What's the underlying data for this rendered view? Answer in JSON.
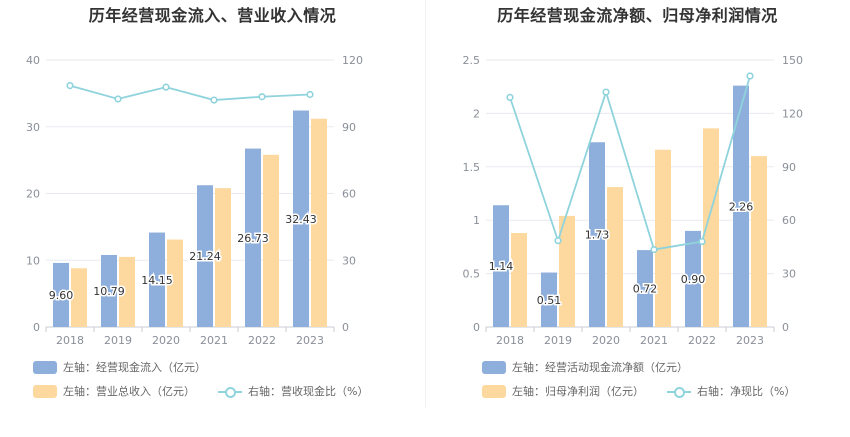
{
  "colors": {
    "blue": "#8eaedb",
    "orange": "#fdd9a0",
    "cyan": "#8fd3dc"
  },
  "chart_data": [
    {
      "type": "bar",
      "title": "历年经营现金流入、营业收入情况",
      "categories": [
        "2018",
        "2019",
        "2020",
        "2021",
        "2022",
        "2023"
      ],
      "y_left": {
        "ticks": [
          "0",
          "10",
          "20",
          "30",
          "40"
        ],
        "lim": [
          0,
          40
        ]
      },
      "y_right": {
        "ticks": [
          "0",
          "30",
          "60",
          "90",
          "120"
        ],
        "lim": [
          0,
          120
        ]
      },
      "series": [
        {
          "name": "左轴：经营现金流入（亿元）",
          "type": "bar",
          "axis": "left",
          "color": "#8eaedb",
          "values": [
            9.6,
            10.79,
            14.15,
            21.24,
            26.73,
            32.43
          ],
          "labels": [
            "9.60",
            "10.79",
            "14.15",
            "21.24",
            "26.73",
            "32.43"
          ]
        },
        {
          "name": "左轴：营业总收入（亿元）",
          "type": "bar",
          "axis": "left",
          "color": "#fdd9a0",
          "values": [
            8.8,
            10.5,
            13.1,
            20.8,
            25.8,
            31.2
          ]
        },
        {
          "name": "右轴：营收现金比（%）",
          "type": "line",
          "axis": "right",
          "color": "#8fd3dc",
          "values": [
            108.5,
            102.5,
            107.8,
            102.0,
            103.5,
            104.5
          ]
        }
      ]
    },
    {
      "type": "bar",
      "title": "历年经营现金流净额、归母净利润情况",
      "categories": [
        "2018",
        "2019",
        "2020",
        "2021",
        "2022",
        "2023"
      ],
      "y_left": {
        "ticks": [
          "0",
          "0.5",
          "1",
          "1.5",
          "2",
          "2.5"
        ],
        "lim": [
          0,
          2.5
        ]
      },
      "y_right": {
        "ticks": [
          "0",
          "30",
          "60",
          "90",
          "120",
          "150"
        ],
        "lim": [
          0,
          150
        ]
      },
      "series": [
        {
          "name": "左轴：经营活动现金流净额（亿元）",
          "type": "bar",
          "axis": "left",
          "color": "#8eaedb",
          "values": [
            1.14,
            0.51,
            1.73,
            0.72,
            0.9,
            2.26
          ],
          "labels": [
            "1.14",
            "0.51",
            "1.73",
            "0.72",
            "0.90",
            "2.26"
          ]
        },
        {
          "name": "左轴：归母净利润（亿元）",
          "type": "bar",
          "axis": "left",
          "color": "#fdd9a0",
          "values": [
            0.88,
            1.04,
            1.31,
            1.66,
            1.86,
            1.6
          ]
        },
        {
          "name": "右轴：净现比（%）",
          "type": "line",
          "axis": "right",
          "color": "#8fd3dc",
          "values": [
            129,
            48.5,
            132,
            43.5,
            48,
            141
          ]
        }
      ]
    }
  ]
}
